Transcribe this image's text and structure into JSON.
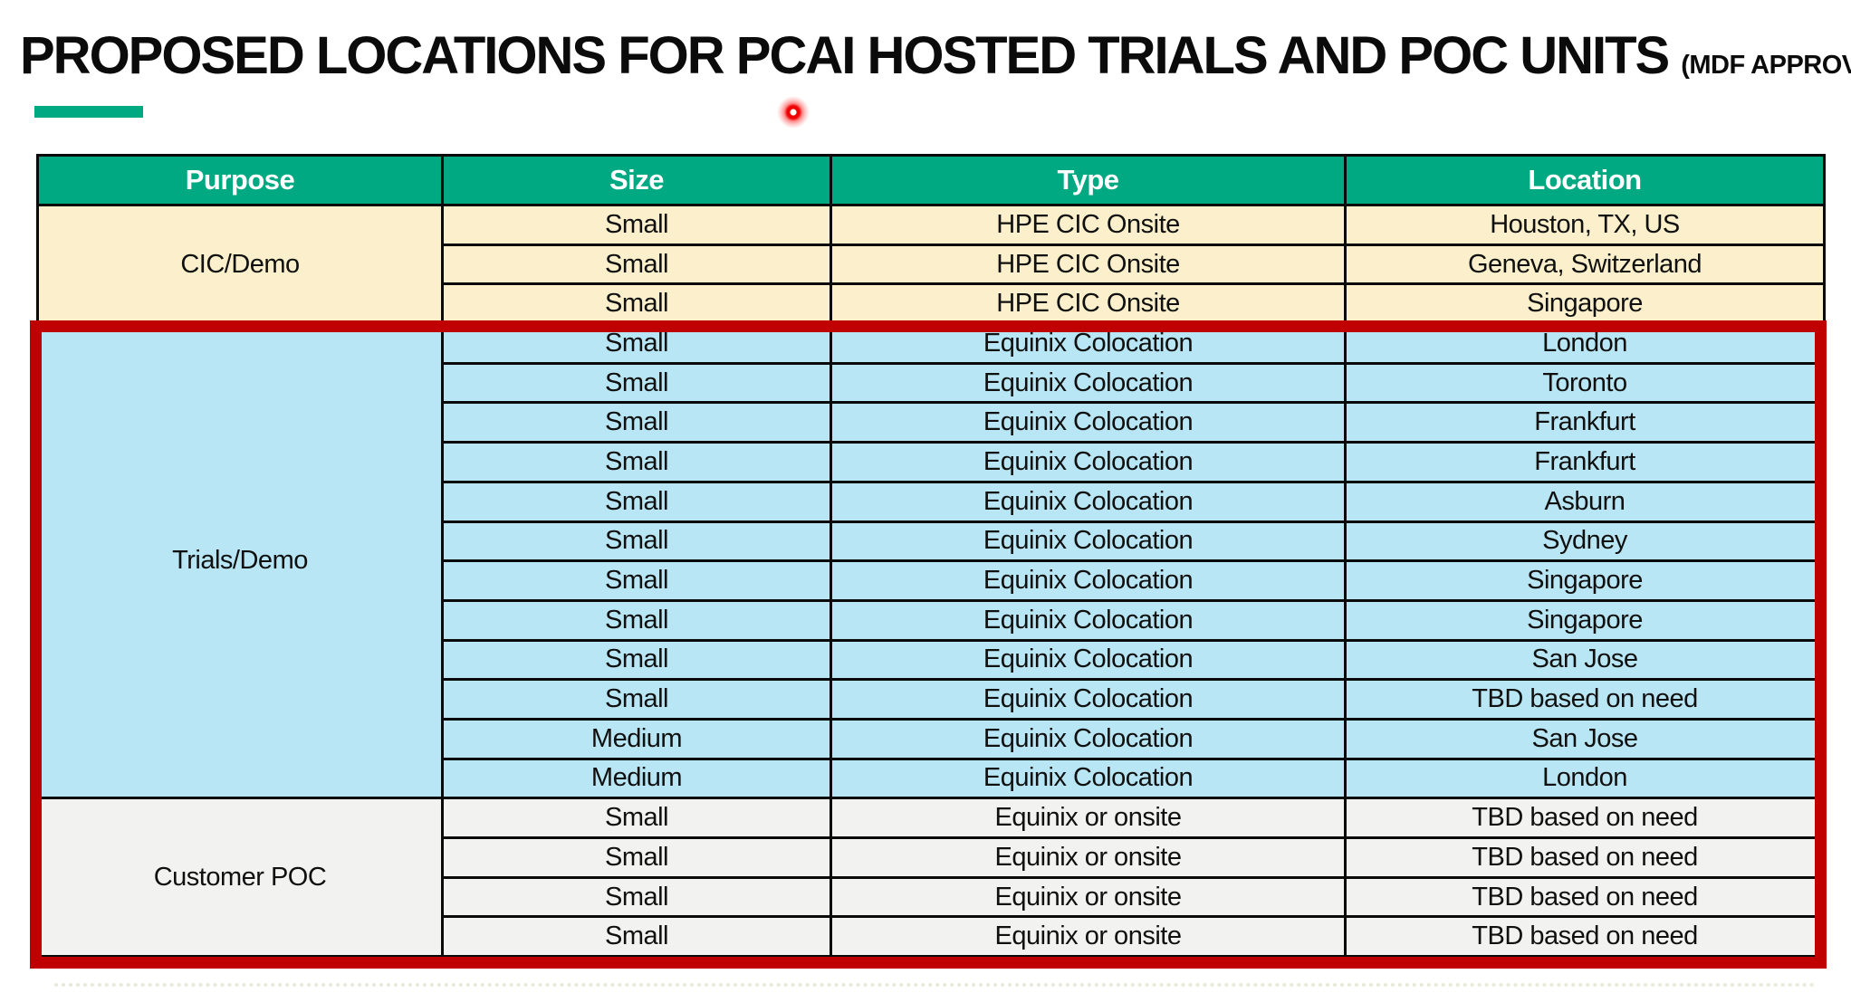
{
  "title": {
    "main": "PROPOSED LOCATIONS FOR PCAI HOSTED TRIALS AND POC UNITS",
    "suffix": "(MDF APPROVED)"
  },
  "colors": {
    "accent_green": "#01A982",
    "header_text": "#ffffff",
    "annotation_red": "#C00000",
    "group_cic_bg": "#FBF0CB",
    "group_trials_bg": "#B8E6F4",
    "group_poc_bg": "#F2F2F1",
    "grid_border": "#0a0a0a"
  },
  "annotations": {
    "highlight_box": "red rectangle around Trials/Demo and Customer POC sections",
    "laser_pointer": "red dot near title"
  },
  "table": {
    "columns": [
      "Purpose",
      "Size",
      "Type",
      "Location"
    ],
    "groups": [
      {
        "name": "CIC/Demo",
        "bg": "#FBF0CB",
        "rows": [
          {
            "size": "Small",
            "type": "HPE CIC Onsite",
            "location": "Houston, TX, US"
          },
          {
            "size": "Small",
            "type": "HPE CIC Onsite",
            "location": "Geneva, Switzerland"
          },
          {
            "size": "Small",
            "type": "HPE CIC Onsite",
            "location": "Singapore"
          }
        ]
      },
      {
        "name": "Trials/Demo",
        "bg": "#B8E6F4",
        "rows": [
          {
            "size": "Small",
            "type": "Equinix Colocation",
            "location": "London"
          },
          {
            "size": "Small",
            "type": "Equinix Colocation",
            "location": "Toronto"
          },
          {
            "size": "Small",
            "type": "Equinix Colocation",
            "location": "Frankfurt"
          },
          {
            "size": "Small",
            "type": "Equinix Colocation",
            "location": "Frankfurt"
          },
          {
            "size": "Small",
            "type": "Equinix Colocation",
            "location": "Asburn"
          },
          {
            "size": "Small",
            "type": "Equinix Colocation",
            "location": "Sydney"
          },
          {
            "size": "Small",
            "type": "Equinix Colocation",
            "location": "Singapore"
          },
          {
            "size": "Small",
            "type": "Equinix Colocation",
            "location": "Singapore"
          },
          {
            "size": "Small",
            "type": "Equinix Colocation",
            "location": "San Jose"
          },
          {
            "size": "Small",
            "type": "Equinix Colocation",
            "location": "TBD based on need"
          },
          {
            "size": "Medium",
            "type": "Equinix Colocation",
            "location": "San Jose"
          },
          {
            "size": "Medium",
            "type": "Equinix Colocation",
            "location": "London"
          }
        ]
      },
      {
        "name": "Customer POC",
        "bg": "#F2F2F1",
        "rows": [
          {
            "size": "Small",
            "type": "Equinix or onsite",
            "location": "TBD based on need"
          },
          {
            "size": "Small",
            "type": "Equinix or onsite",
            "location": "TBD based on need"
          },
          {
            "size": "Small",
            "type": "Equinix or onsite",
            "location": "TBD based on need"
          },
          {
            "size": "Small",
            "type": "Equinix or onsite",
            "location": "TBD based on need"
          }
        ]
      }
    ]
  }
}
